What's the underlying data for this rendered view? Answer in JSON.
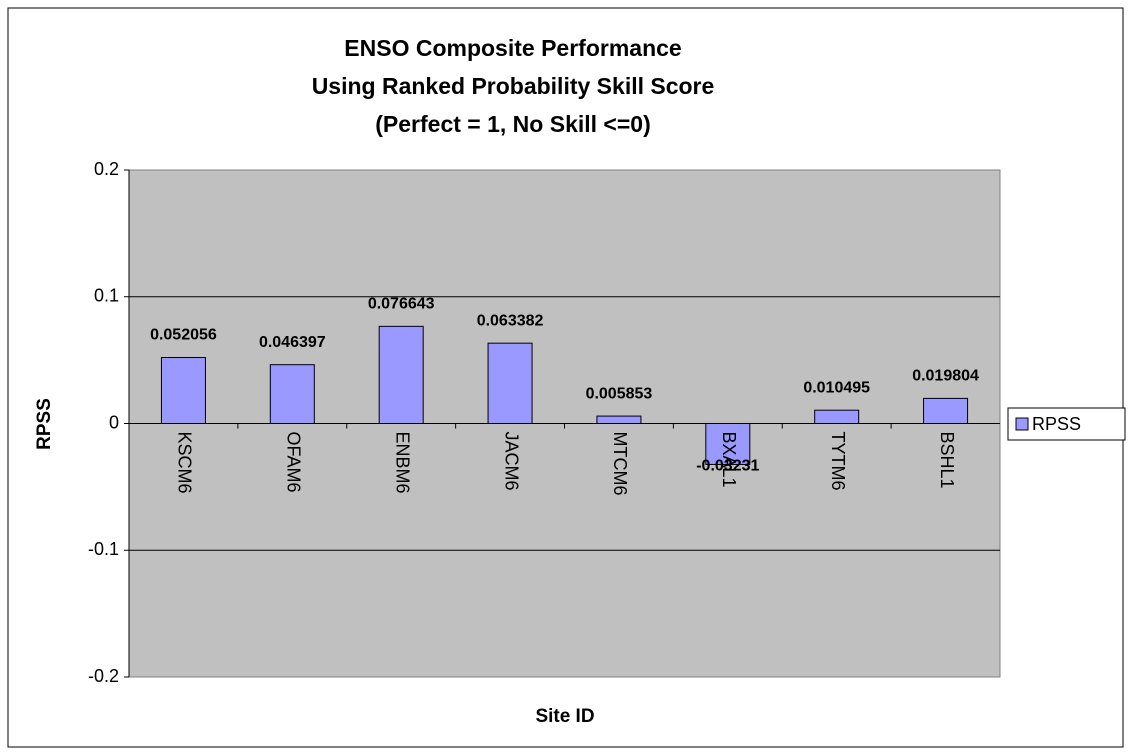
{
  "chart_data": {
    "type": "bar",
    "title": [
      "ENSO Composite Performance",
      "Using Ranked Probability Skill Score",
      "(Perfect = 1, No Skill <=0)"
    ],
    "x_label": "Site ID",
    "y_label": "RPSS",
    "categories": [
      "KSCM6",
      "OFAM6",
      "ENBM6",
      "JACM6",
      "MTCM6",
      "BXAL1",
      "TYTM6",
      "BSHL1"
    ],
    "series": [
      {
        "name": "RPSS",
        "color": "#9999ff",
        "values": [
          0.052056,
          0.046397,
          0.076643,
          0.063382,
          0.005853,
          -0.03231,
          0.010495,
          0.019804
        ]
      }
    ],
    "ylim": [
      -0.2,
      0.2
    ],
    "yticks": [
      -0.2,
      -0.1,
      0,
      0.1,
      0.2
    ],
    "grid": true,
    "legend": "right"
  }
}
